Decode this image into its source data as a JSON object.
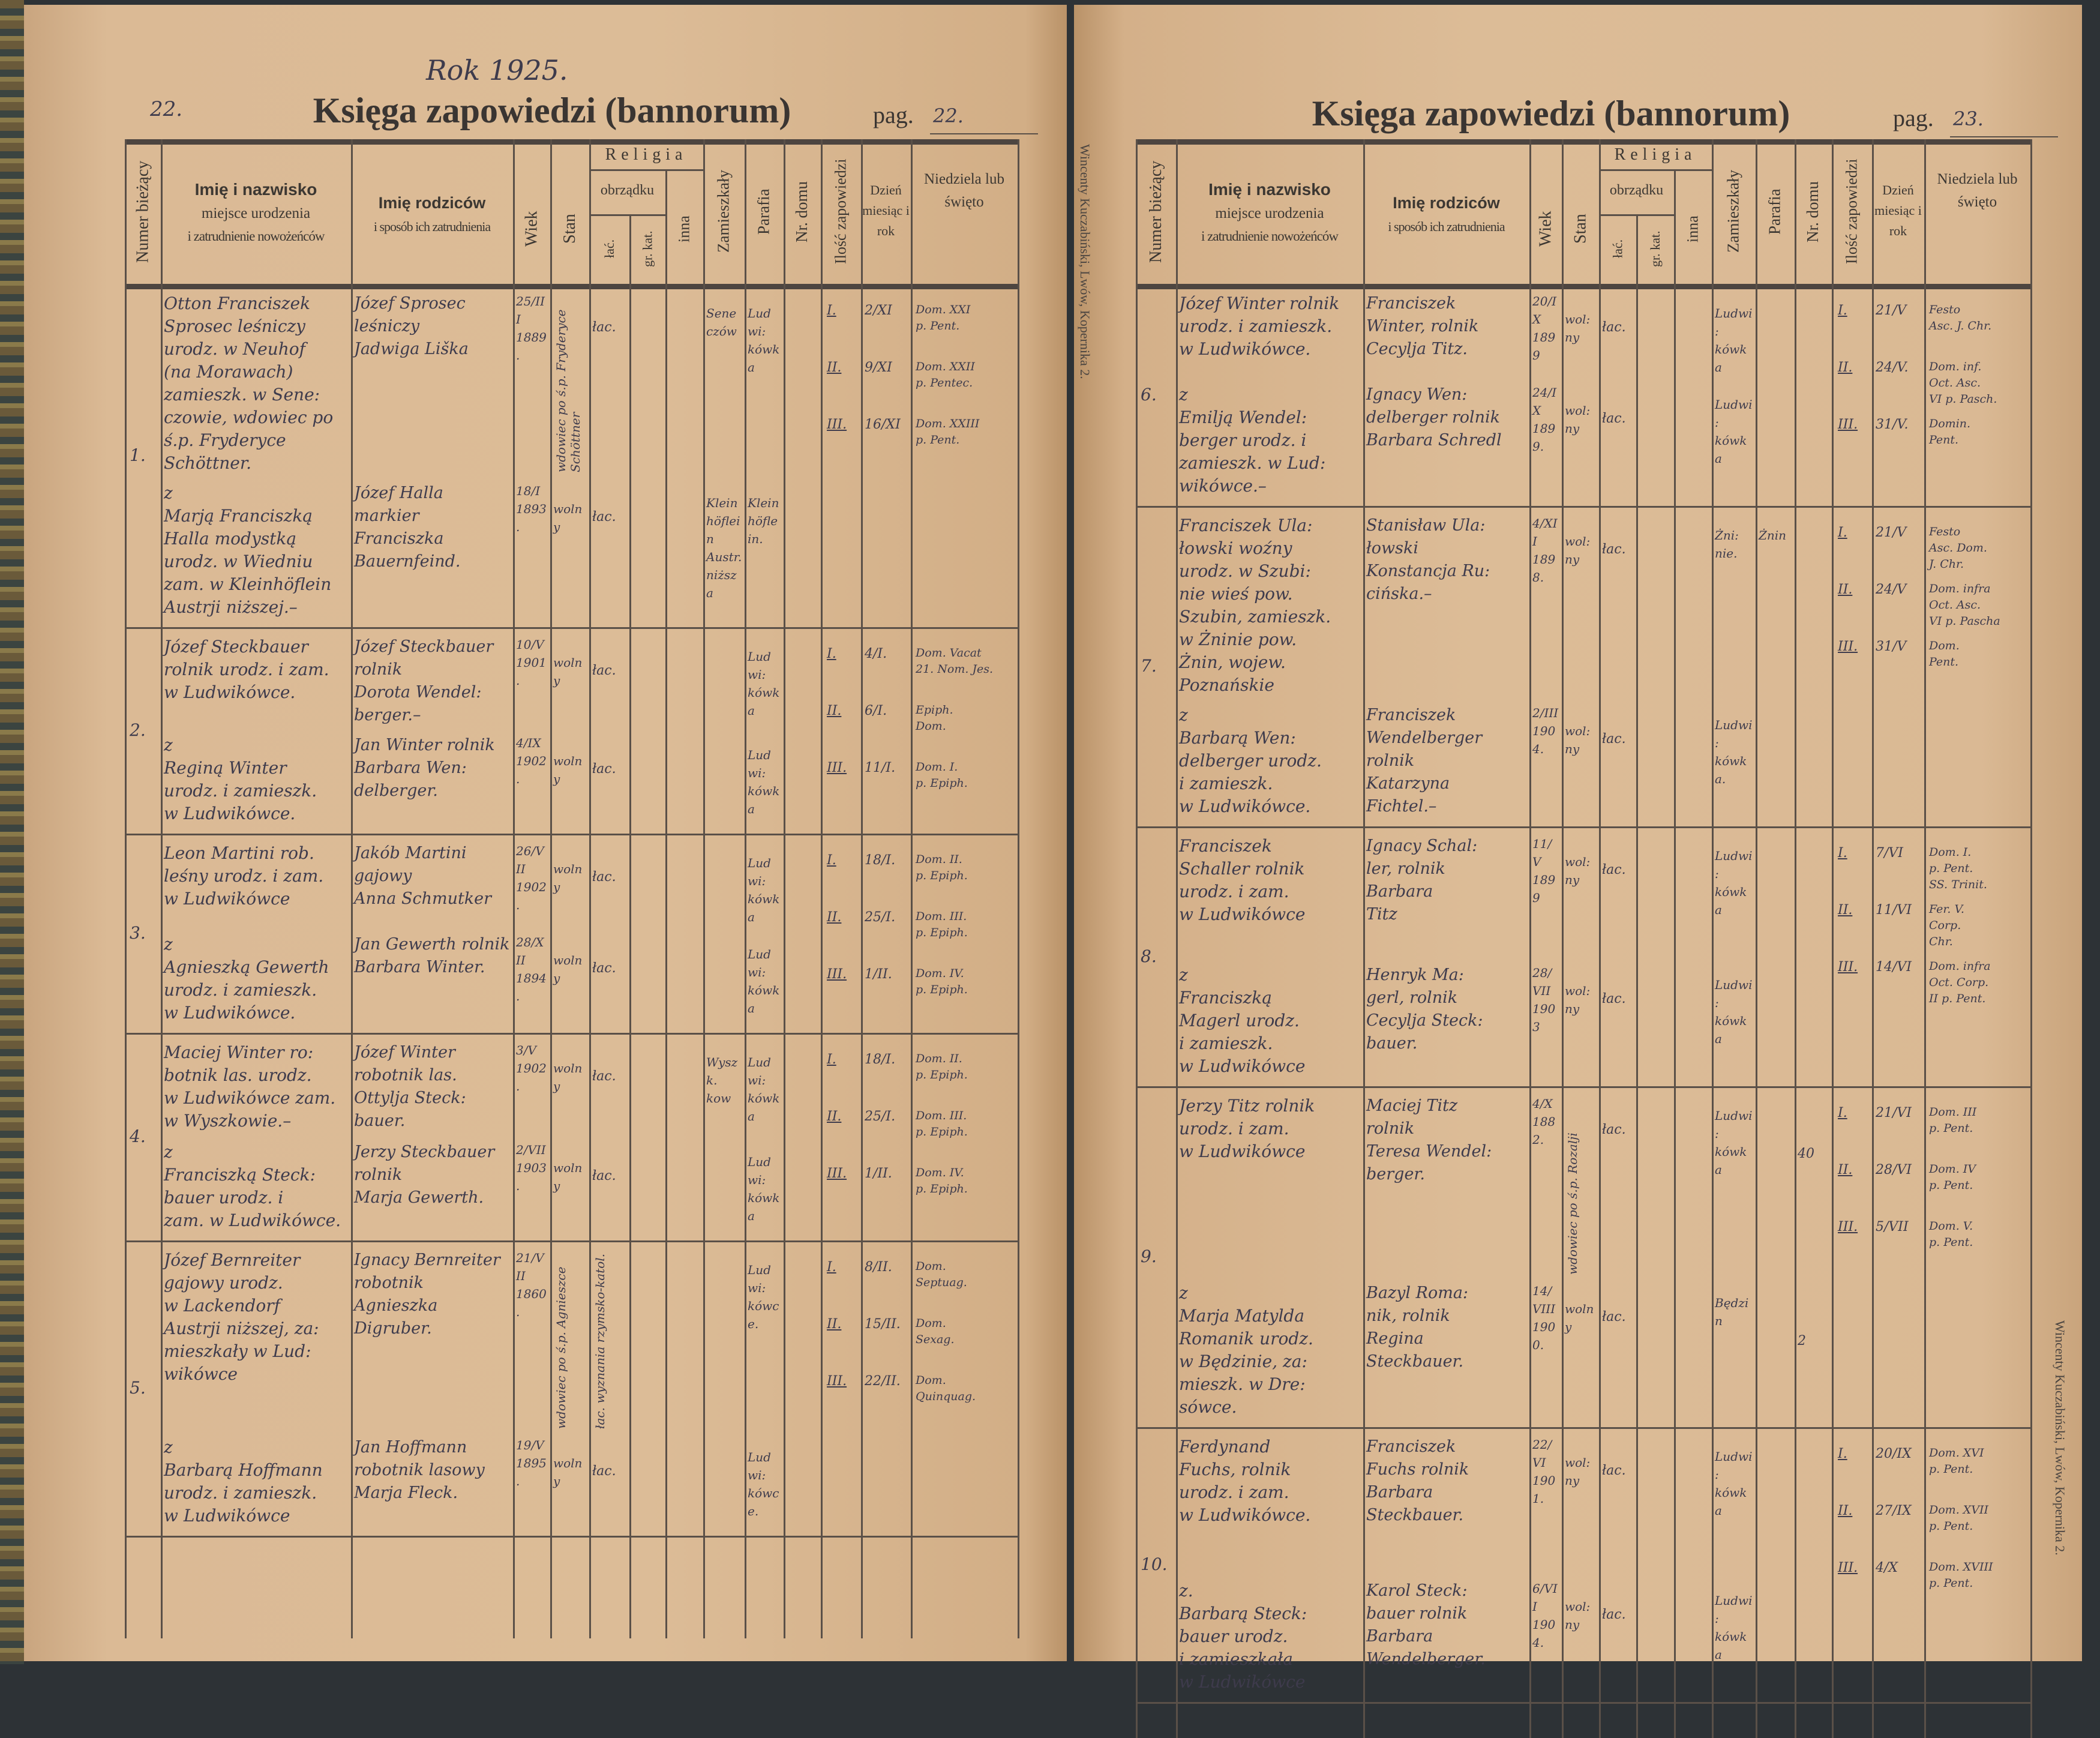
{
  "headers": {
    "num": "Numer bieżący",
    "name_bold": "Imię i nazwisko",
    "name_sub1": "miejsce urodzenia",
    "name_sub2": "i zatrudnienie nowożeńców",
    "parents_bold": "Imię rodziców",
    "parents_sub": "i sposób ich zatrudnienia",
    "age": "Wiek",
    "stan": "Stan",
    "religia": "Religia",
    "obrzadku": "obrządku",
    "lat": "łać.",
    "gr": "gr. kat.",
    "inna": "inna",
    "zam": "Zamieszkały",
    "par": "Parafia",
    "nr": "Nr. domu",
    "banns": "Ilość zapowiedzi",
    "date": "Dzień miesiąc i rok",
    "sunday": "Niedziela lub święto"
  },
  "printer_note": "Wincenty Kuczabiński, Lwów, Kopernika 2.",
  "pages": [
    {
      "corner_number": "22.",
      "year_note": "Rok 1925.",
      "title": "Księga zapowiedzi (bannorum)",
      "pag_label": "pag.",
      "pag_value": "22.",
      "entries": [
        {
          "number": "1.",
          "groom": {
            "name": "Otton Franciszek\nSprosec leśniczy\nurodz. w Neuhof\n(na Morawach)\nzamieszk. w Sene:\nczowie, wdowiec po\nś.p. Fryderyce Schöttner.",
            "parents": "Józef Sprosec\nleśniczy\nJadwiga Liška",
            "age": "25/III\n1889.",
            "stan": "wdowiec po ś.p. Fryderyce Schöttner",
            "lat": "łac.",
            "zam": "Sene\nczów",
            "par": "Ludwi:\nkówka",
            "nr": ""
          },
          "bride": {
            "name": "z\nMarją Franciszką\nHalla modystką\nurodz. w Wiedniu\nzam. w Kleinhöflein\nAustrji niższej.–",
            "parents": "Józef Halla markier\nFranciszka\nBauernfeind.",
            "age": "18/I\n1893.",
            "stan": "wolny",
            "lat": "łac.",
            "zam": "Klein\nhöflein\nAustr.\nniższa",
            "par": "Klein\nhöflein.",
            "nr": ""
          },
          "banns": [
            {
              "n": "I.",
              "date": "2/XI",
              "sunday": "Dom. XXI\np. Pent."
            },
            {
              "n": "II.",
              "date": "9/XI",
              "sunday": "Dom. XXII\np. Pentec."
            },
            {
              "n": "III.",
              "date": "16/XI",
              "sunday": "Dom. XXIII\np. Pent."
            }
          ]
        },
        {
          "number": "2.",
          "groom": {
            "name": "Józef Steckbauer\nrolnik urodz. i zam.\nw Ludwikówce.",
            "parents": "Józef Steckbauer\nrolnik\nDorota Wendel:\nberger.–",
            "age": "10/V\n1901.",
            "stan": "wolny",
            "lat": "łac.",
            "zam": "",
            "par": "Ludwi:\nkówka",
            "nr": ""
          },
          "bride": {
            "name": "z\nReginą Winter\nurodz. i zamieszk.\nw Ludwikówce.",
            "parents": "Jan Winter rolnik\nBarbara Wen:\ndelberger.",
            "age": "4/IX\n1902.",
            "stan": "wolny",
            "lat": "łac.",
            "zam": "",
            "par": "Ludwi:\nkówka",
            "nr": ""
          },
          "banns": [
            {
              "n": "I.",
              "date": "4/I.",
              "sunday": "Dom. Vacat\n21. Nom. Jes."
            },
            {
              "n": "II.",
              "date": "6/I.",
              "sunday": "Epiph.\nDom."
            },
            {
              "n": "III.",
              "date": "11/I.",
              "sunday": "Dom. I.\np. Epiph."
            }
          ]
        },
        {
          "number": "3.",
          "groom": {
            "name": "Leon Martini rob.\nleśny urodz. i zam.\nw Ludwikówce",
            "parents": "Jakób Martini\ngajowy\nAnna Schmutker",
            "age": "26/VII\n1902.",
            "stan": "wolny",
            "lat": "łac.",
            "zam": "",
            "par": "Ludwi:\nkówka",
            "nr": ""
          },
          "bride": {
            "name": "z\nAgnieszką Gewerth\nurodz. i zamieszk.\nw Ludwikówce.",
            "parents": "Jan Gewerth rolnik\nBarbara Winter.",
            "age": "28/XII\n1894.",
            "stan": "wolny",
            "lat": "łac.",
            "zam": "",
            "par": "Ludwi:\nkówka",
            "nr": ""
          },
          "banns": [
            {
              "n": "I.",
              "date": "18/I.",
              "sunday": "Dom. II.\np. Epiph."
            },
            {
              "n": "II.",
              "date": "25/I.",
              "sunday": "Dom. III.\np. Epiph."
            },
            {
              "n": "III.",
              "date": "1/II.",
              "sunday": "Dom. IV.\np. Epiph."
            }
          ]
        },
        {
          "number": "4.",
          "groom": {
            "name": "Maciej Winter ro:\nbotnik las. urodz.\nw Ludwikówce zam.\nw Wyszkowie.–",
            "parents": "Józef Winter\nrobotnik las.\nOttylja Steck:\nbauer.",
            "age": "3/V\n1902.",
            "stan": "wolny",
            "lat": "łac.",
            "zam": "Wyszk.\nkow",
            "par": "Ludwi:\nkówka",
            "nr": ""
          },
          "bride": {
            "name": "z\nFranciszką Steck:\nbauer urodz. i\nzam. w Ludwikówce.",
            "parents": "Jerzy Steckbauer\nrolnik\nMarja Gewerth.",
            "age": "2/VII\n1903.",
            "stan": "wolny",
            "lat": "łac.",
            "zam": "",
            "par": "Ludwi:\nkówka",
            "nr": ""
          },
          "banns": [
            {
              "n": "I.",
              "date": "18/I.",
              "sunday": "Dom. II.\np. Epiph."
            },
            {
              "n": "II.",
              "date": "25/I.",
              "sunday": "Dom. III.\np. Epiph."
            },
            {
              "n": "III.",
              "date": "1/II.",
              "sunday": "Dom. IV.\np. Epiph."
            }
          ]
        },
        {
          "number": "5.",
          "groom": {
            "name": "Józef Bernreiter\ngajowy urodz.\nw Lackendorf\nAustrji niższej, za:\nmieszkały w Lud:\nwikówce",
            "parents": "Ignacy Bernreiter\nrobotnik\nAgnieszka\nDigruber.",
            "age": "21/VII\n1860.",
            "stan": "wdowiec po ś.p. Agnieszce",
            "lat": "łac. wyznania rzymsko-katol.",
            "zam": "",
            "par": "Ludwi:\nkówce.",
            "nr": ""
          },
          "bride": {
            "name": "z\nBarbarą Hoffmann\nurodz. i zamieszk.\nw Ludwikówce",
            "parents": "Jan Hoffmann\nrobotnik lasowy\nMarja Fleck.",
            "age": "19/V\n1895.",
            "stan": "wolny",
            "lat": "łac.",
            "zam": "",
            "par": "Ludwi:\nkówce.",
            "nr": ""
          },
          "banns": [
            {
              "n": "I.",
              "date": "8/II.",
              "sunday": "Dom.\nSeptuag."
            },
            {
              "n": "II.",
              "date": "15/II.",
              "sunday": "Dom.\nSexag."
            },
            {
              "n": "III.",
              "date": "22/II.",
              "sunday": "Dom.\nQuinquag."
            }
          ]
        }
      ]
    },
    {
      "corner_number": "",
      "year_note": "",
      "title": "Księga zapowiedzi (bannorum)",
      "pag_label": "pag.",
      "pag_value": "23.",
      "entries": [
        {
          "number": "6.",
          "groom": {
            "name": "Józef Winter rolnik\nurodz. i zamieszk.\nw Ludwikówce.",
            "parents": "Franciszek\nWinter, rolnik\nCecylja Titz.",
            "age": "20/IX\n1899",
            "stan": "wol:\nny",
            "lat": "łac.",
            "zam": "Ludwi:\nkówka",
            "par": "",
            "nr": ""
          },
          "bride": {
            "name": "z\nEmilją Wendel:\nberger urodz. i\nzamieszk. w Lud:\nwikówce.–",
            "parents": "Ignacy Wen:\ndelberger rolnik\nBarbara Schredl",
            "age": "24/IX\n1899.",
            "stan": "wol:\nny",
            "lat": "łac.",
            "zam": "Ludwi:\nkówka",
            "par": "",
            "nr": ""
          },
          "banns": [
            {
              "n": "I.",
              "date": "21/V",
              "sunday": "Festo\nAsc. J. Chr."
            },
            {
              "n": "II.",
              "date": "24/V.",
              "sunday": "Dom. inf.\nOct. Asc.\nVI p. Pasch."
            },
            {
              "n": "III.",
              "date": "31/V.",
              "sunday": "Domin.\nPent."
            }
          ]
        },
        {
          "number": "7.",
          "groom": {
            "name": "Franciszek Ula:\nłowski woźny\nurodz. w Szubi:\nnie wieś pow.\nSzubin, zamieszk.\nw Żninie pow.\nŻnin, wojew.\nPoznańskie",
            "parents": "Stanisław Ula:\nłowski\nKonstancja Ru:\ncińska.–",
            "age": "4/XII\n1898.",
            "stan": "wol:\nny",
            "lat": "łac.",
            "zam": "Żni:\nnie.",
            "par": "Żnin",
            "nr": ""
          },
          "bride": {
            "name": "z\nBarbarą Wen:\ndelberger urodz.\ni zamieszk.\nw Ludwikówce.",
            "parents": "Franciszek\nWendelberger\nrolnik\nKatarzyna\nFichtel.–",
            "age": "2/III\n1904.",
            "stan": "wol:\nny",
            "lat": "łac.",
            "zam": "Ludwi:\nkówka.",
            "par": "",
            "nr": ""
          },
          "banns": [
            {
              "n": "I.",
              "date": "21/V",
              "sunday": "Festo\nAsc. Dom.\nJ. Chr."
            },
            {
              "n": "II.",
              "date": "24/V",
              "sunday": "Dom. infra\nOct. Asc.\nVI p. Pascha"
            },
            {
              "n": "III.",
              "date": "31/V",
              "sunday": "Dom.\nPent."
            }
          ]
        },
        {
          "number": "8.",
          "groom": {
            "name": "Franciszek\nSchaller rolnik\nurodz. i zam.\nw Ludwikówce",
            "parents": "Ignacy Schal:\nler, rolnik\nBarbara\nTitz",
            "age": "11/V\n1899",
            "stan": "wol:\nny",
            "lat": "łac.",
            "zam": "Ludwi:\nkówka",
            "par": "",
            "nr": ""
          },
          "bride": {
            "name": "z\nFranciszką\nMagerl urodz.\ni zamieszk.\nw Ludwikówce",
            "parents": "Henryk Ma:\ngerl, rolnik\nCecylja Steck:\nbauer.",
            "age": "28/VII\n1903",
            "stan": "wol:\nny",
            "lat": "łac.",
            "zam": "Ludwi:\nkówka",
            "par": "",
            "nr": ""
          },
          "banns": [
            {
              "n": "I.",
              "date": "7/VI",
              "sunday": "Dom. I.\np. Pent.\nSS. Trinit."
            },
            {
              "n": "II.",
              "date": "11/VI",
              "sunday": "Fer. V.\nCorp.\nChr."
            },
            {
              "n": "III.",
              "date": "14/VI",
              "sunday": "Dom. infra\nOct. Corp.\nII p. Pent."
            }
          ]
        },
        {
          "number": "9.",
          "groom": {
            "name": "Jerzy Titz rolnik\nurodz. i zam.\nw Ludwikówce",
            "parents": "Maciej Titz\nrolnik\nTeresa Wendel:\nberger.",
            "age": "4/X\n1882.",
            "stan": "wdowiec po ś.p. Rozalji",
            "lat": "łac.",
            "zam": "Ludwi:\nkówka",
            "par": "",
            "nr": "40"
          },
          "bride": {
            "name": "z\nMarja Matylda\nRomanik urodz.\nw Będzinie, za:\nmieszk. w Dre:\nsówce.",
            "parents": "Bazyl Roma:\nnik, rolnik\nRegina\nSteckbauer.",
            "age": "14/VIII\n1900.",
            "stan": "wolny",
            "lat": "łac.",
            "zam": "Będzin",
            "par": "",
            "nr": "2"
          },
          "banns": [
            {
              "n": "I.",
              "date": "21/VI",
              "sunday": "Dom. III\np. Pent."
            },
            {
              "n": "II.",
              "date": "28/VI",
              "sunday": "Dom. IV\np. Pent."
            },
            {
              "n": "III.",
              "date": "5/VII",
              "sunday": "Dom. V.\np. Pent."
            }
          ]
        },
        {
          "number": "10.",
          "groom": {
            "name": "Ferdynand\nFuchs, rolnik\nurodz. i zam.\nw Ludwikówce.",
            "parents": "Franciszek\nFuchs rolnik\nBarbara\nSteckbauer.",
            "age": "22/VI\n1901.",
            "stan": "wol:\nny",
            "lat": "łac.",
            "zam": "Ludwi:\nkówka",
            "par": "",
            "nr": ""
          },
          "bride": {
            "name": "z.\nBarbarą Steck:\nbauer urodz.\ni zamieszkała\nw Ludwikówce",
            "parents": "Karol Steck:\nbauer rolnik\nBarbara\nWendelberger.",
            "age": "6/VII\n1904.",
            "stan": "wol:\nny",
            "lat": "łac.",
            "zam": "Ludwi:\nkówka",
            "par": "",
            "nr": ""
          },
          "banns": [
            {
              "n": "I.",
              "date": "20/IX",
              "sunday": "Dom. XVI\np. Pent."
            },
            {
              "n": "II.",
              "date": "27/IX",
              "sunday": "Dom. XVII\np. Pent."
            },
            {
              "n": "III.",
              "date": "4/X",
              "sunday": "Dom. XVIII\np. Pent."
            }
          ]
        }
      ]
    }
  ]
}
